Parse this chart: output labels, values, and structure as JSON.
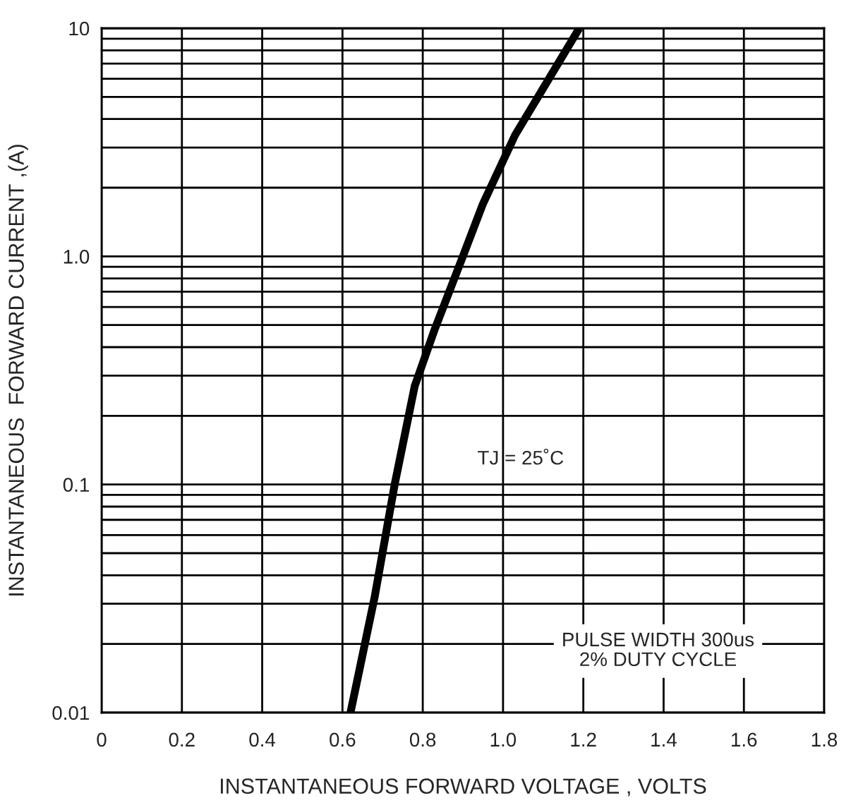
{
  "chart_data": {
    "type": "line",
    "xlabel": "INSTANTANEOUS FORWARD VOLTAGE , VOLTS",
    "ylabel": "INSTANTANEOUS  FORWARD CURRENT ,(A)",
    "x": [
      0.62,
      0.68,
      0.73,
      0.78,
      0.83,
      0.9,
      0.95,
      1.03,
      1.19
    ],
    "series": [
      {
        "color": "#000000",
        "values": [
          0.01,
          0.032,
          0.1,
          0.27,
          0.48,
          1.0,
          1.7,
          3.4,
          10
        ]
      }
    ],
    "log": "y",
    "xlim": [
      0,
      1.8
    ],
    "xticks": [
      0,
      0.2,
      0.4,
      0.6,
      0.8,
      {
        "value": 1.0,
        "label": "1.0"
      },
      1.2,
      1.4,
      1.6,
      1.8
    ],
    "ylim": [
      0.01,
      10
    ],
    "yticks": [
      0.01,
      0.1,
      {
        "value": 1,
        "label": "1.0"
      },
      10
    ],
    "grid": true,
    "line_style": "solid",
    "annotations": [
      "TJ = 25˚C",
      "PULSE WIDTH 300us\n2% DUTY CYCLE"
    ]
  }
}
